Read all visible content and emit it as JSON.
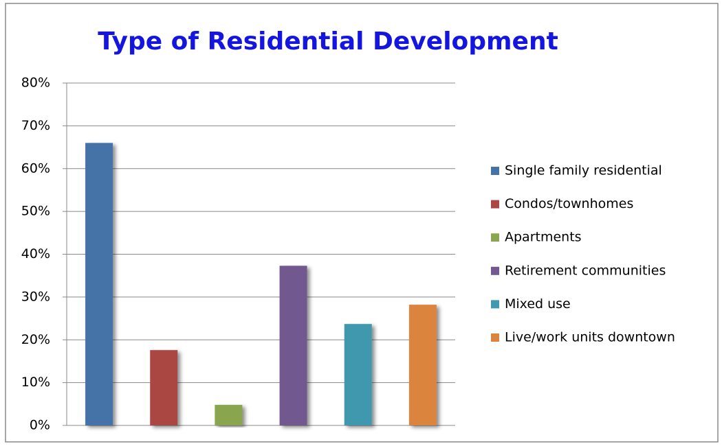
{
  "chart_data": {
    "type": "bar",
    "title": "Type of Residential Development",
    "series": [
      {
        "name": "Single family residential",
        "color": "#4572a7",
        "values": [
          66
        ]
      },
      {
        "name": "Condos/townhomes",
        "color": "#aa4643",
        "values": [
          17.6
        ]
      },
      {
        "name": "Apartments",
        "color": "#89a54e",
        "values": [
          4.8
        ]
      },
      {
        "name": "Retirement communities",
        "color": "#71588f",
        "values": [
          37.3
        ]
      },
      {
        "name": "Mixed use",
        "color": "#4198af",
        "values": [
          23.7
        ]
      },
      {
        "name": "Live/work units downtown",
        "color": "#db843d",
        "values": [
          28.2
        ]
      }
    ],
    "ylim": [
      0,
      80
    ],
    "yticks": [
      {
        "value": 0,
        "label": "0%"
      },
      {
        "value": 10,
        "label": "10%"
      },
      {
        "value": 20,
        "label": "20%"
      },
      {
        "value": 30,
        "label": "30%"
      },
      {
        "value": 40,
        "label": "40%"
      },
      {
        "value": 50,
        "label": "50%"
      },
      {
        "value": 60,
        "label": "60%"
      },
      {
        "value": 70,
        "label": "70%"
      },
      {
        "value": 80,
        "label": "80%"
      }
    ],
    "grid": true,
    "legend": "right"
  }
}
